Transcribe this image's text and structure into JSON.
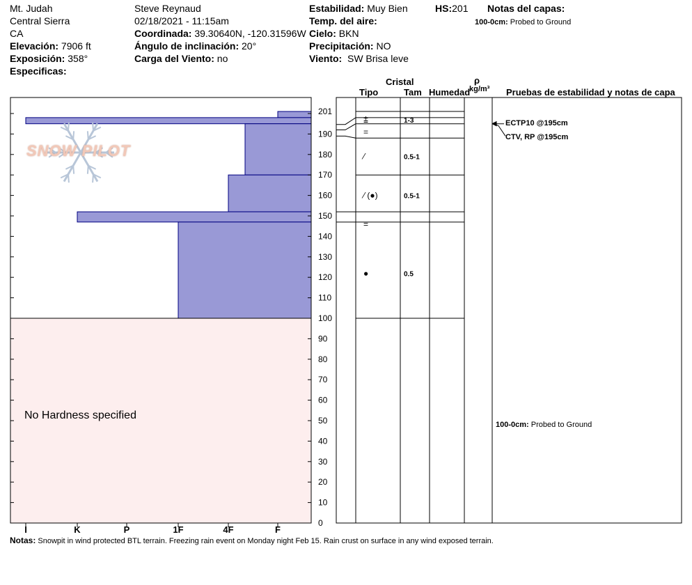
{
  "header": {
    "location": "Mt. Judah",
    "range": "Central Sierra",
    "state": "CA",
    "elevation_label": "Elevación:",
    "elevation_value": "7906 ft",
    "aspect_label": "Exposición:",
    "aspect_value": "358°",
    "specifics_label": "Especificas:",
    "observer": "Steve Reynaud",
    "datetime": "02/18/2021 - 11:15am",
    "coord_label": "Coordinada:",
    "coord_value": "39.30640N, -120.31596W",
    "slope_label": "Ángulo de inclinación:",
    "slope_value": "20°",
    "wind_load_label": "Carga del Viento:",
    "wind_load_value": "no",
    "stability_label": "Estabilidad:",
    "stability_value": "Muy Bien",
    "air_temp_label": "Temp. del aire:",
    "sky_label": "Cielo:",
    "sky_value": "BKN",
    "precip_label": "Precipitación:",
    "precip_value": "NO",
    "wind_label": "Viento:",
    "wind_value": "SW Brisa leve",
    "hs_label": "HS:",
    "hs_value": "201",
    "layer_notes_label": "Notas del capas:",
    "layer_note_range": "100-0cm:",
    "layer_note_text": "Probed to Ground"
  },
  "logo": {
    "text": "SNOW PILOT"
  },
  "columns": {
    "crystal": "Cristal",
    "type": "Tipo",
    "size": "Tam",
    "humidity": "Humedad",
    "rho": "ρ",
    "density_unit": "kg/m³",
    "tests": "Pruebas de estabilidad y notas de capa"
  },
  "no_hardness": "No Hardness specified",
  "tests": [
    {
      "label": "ECTP10 @195cm",
      "depth": 195
    },
    {
      "label": "CTV, RP @195cm",
      "depth": 195
    }
  ],
  "lower_note": {
    "range": "100-0cm:",
    "text": "Probed to Ground",
    "depth": 50
  },
  "notes": {
    "label": "Notas:",
    "text": "Snowpit in wind protected BTL terrain.  Freezing rain event on Monday night Feb 15.  Rain crust on surface in any wind exposed terrain."
  },
  "colors": {
    "hardness_fill": "#9999d6",
    "hardness_stroke": "#000080",
    "nohardness_fill": "#fdeeee"
  },
  "chart_data": {
    "type": "bar",
    "ylabel": "",
    "ylim": [
      0,
      201
    ],
    "y_ticks": [
      201,
      190,
      180,
      170,
      160,
      150,
      140,
      130,
      120,
      110,
      100,
      90,
      80,
      70,
      60,
      50,
      40,
      30,
      20,
      10,
      0
    ],
    "hardness_scale": [
      "I",
      "K",
      "P",
      "1F",
      "4F",
      "F"
    ],
    "hardness_layers": [
      {
        "top": 201,
        "bottom": 198,
        "hardness": "F"
      },
      {
        "top": 198,
        "bottom": 195,
        "hardness": "I"
      },
      {
        "top": 195,
        "bottom": 170,
        "hardness": "4F+"
      },
      {
        "top": 170,
        "bottom": 152,
        "hardness": "4F"
      },
      {
        "top": 152,
        "bottom": 147,
        "hardness": "K+"
      },
      {
        "top": 147,
        "bottom": 100,
        "hardness": "1F"
      }
    ],
    "layer_boundaries": [
      201,
      198,
      195,
      188,
      170,
      152,
      147,
      100
    ],
    "crystal_layers": [
      {
        "depth": 197,
        "symbol": "⩲",
        "size": "1-3"
      },
      {
        "depth": 191,
        "symbol": "=",
        "size": ""
      },
      {
        "depth": 179,
        "symbol": "⁄",
        "size": "0.5-1"
      },
      {
        "depth": 160,
        "symbol": "⁄ (●)",
        "size": "0.5-1"
      },
      {
        "depth": 146,
        "symbol": "=",
        "size": ""
      },
      {
        "depth": 122,
        "symbol": "●",
        "size": "0.5"
      }
    ]
  }
}
